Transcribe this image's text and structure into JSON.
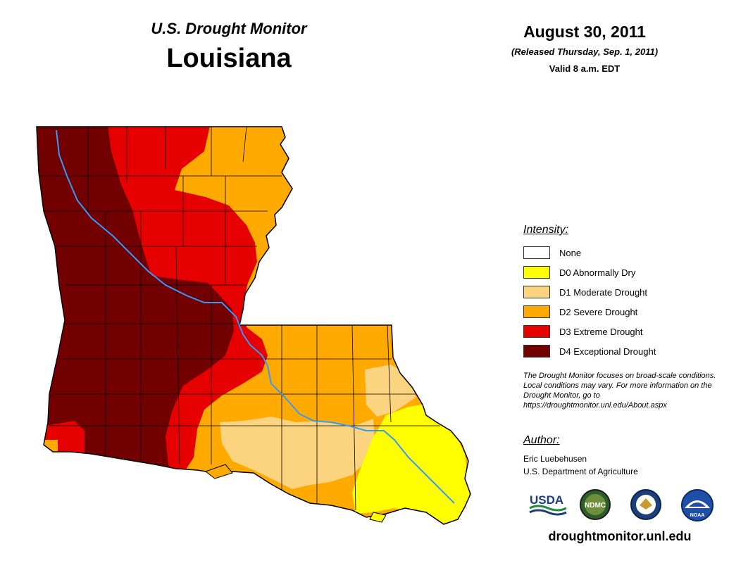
{
  "header": {
    "subtitle": "U.S. Drought Monitor",
    "state": "Louisiana"
  },
  "date_block": {
    "date": "August 30, 2011",
    "released": "(Released Thursday, Sep. 1, 2011)",
    "valid": "Valid 8 a.m. EDT"
  },
  "legend": {
    "title": "Intensity:",
    "items": [
      {
        "label": "None",
        "color": "#ffffff"
      },
      {
        "label": "D0 Abnormally Dry",
        "color": "#ffff00"
      },
      {
        "label": "D1 Moderate Drought",
        "color": "#fcd37f"
      },
      {
        "label": "D2 Severe Drought",
        "color": "#ffaa00"
      },
      {
        "label": "D3 Extreme Drought",
        "color": "#e60000"
      },
      {
        "label": "D4 Exceptional Drought",
        "color": "#730000"
      }
    ]
  },
  "note": "The Drought Monitor focuses on broad-scale conditions. Local conditions may vary. For more information on the Drought Monitor, go to https://droughtmonitor.unl.edu/About.aspx",
  "author": {
    "title": "Author:",
    "name": "Eric Luebehusen",
    "org": "U.S. Department of Agriculture"
  },
  "logos": {
    "usda": "USDA",
    "ndmc": "NDMC",
    "noaa": "NOAA"
  },
  "footer_url": "droughtmonitor.unl.edu",
  "colors": {
    "river": "#3399ff",
    "county_lines": "#000000"
  }
}
